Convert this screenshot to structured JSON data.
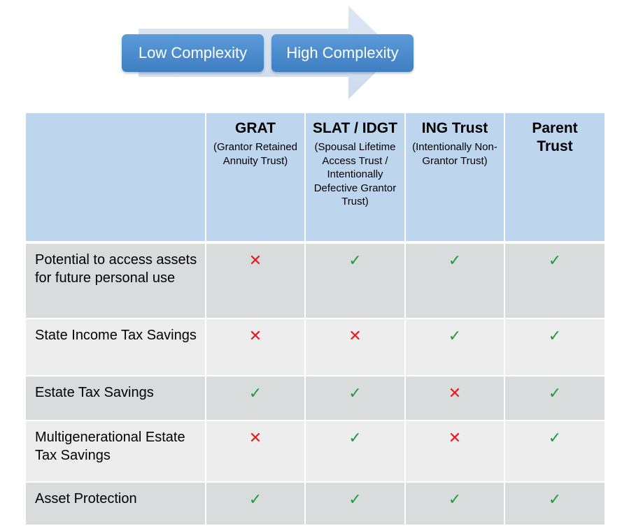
{
  "arrow": {
    "labels": [
      "Low Complexity",
      "High Complexity"
    ],
    "fill_color": "#d6e2f1",
    "pill_color": "#4a8cd0"
  },
  "table": {
    "header_color": "#bdd6ee",
    "columns": [
      {
        "title": "GRAT",
        "subtitle": "(Grantor Retained Annuity Trust)"
      },
      {
        "title": "SLAT / IDGT",
        "subtitle": "(Spousal Lifetime Access Trust / Intentionally Defective Grantor Trust)"
      },
      {
        "title": "ING Trust",
        "subtitle": "(Intentionally Non-Grantor Trust)"
      },
      {
        "title": "Parent Trust",
        "subtitle": ""
      }
    ],
    "rows": [
      {
        "label": "Potential to access assets for future personal use",
        "marks": [
          "cross",
          "check",
          "check",
          "check"
        ]
      },
      {
        "label": "State Income Tax Savings",
        "marks": [
          "cross",
          "cross",
          "check",
          "check"
        ]
      },
      {
        "label": "Estate Tax Savings",
        "marks": [
          "check",
          "check",
          "cross",
          "check"
        ]
      },
      {
        "label": "Multigenerational Estate Tax Savings",
        "marks": [
          "cross",
          "check",
          "cross",
          "check"
        ]
      },
      {
        "label": "Asset Protection",
        "marks": [
          "check",
          "check",
          "check",
          "check"
        ]
      }
    ],
    "mark_symbols": {
      "check": "✓",
      "cross": "✕"
    },
    "mark_colors": {
      "check": "#1a9e3a",
      "cross": "#e8191c"
    }
  }
}
